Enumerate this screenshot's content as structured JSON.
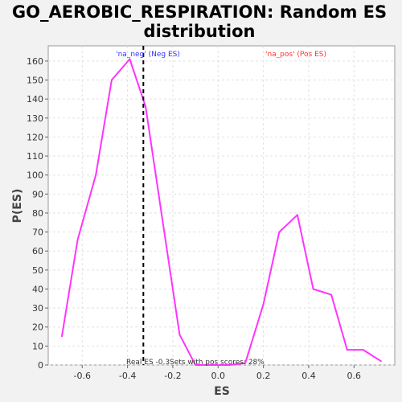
{
  "chart_data": {
    "type": "line",
    "title_line1": "GO_AEROBIC_RESPIRATION: Random ES",
    "title_line2": "distribution",
    "xlabel": "ES",
    "ylabel": "P(ES)",
    "xlim": [
      -0.75,
      0.78
    ],
    "ylim": [
      0,
      168
    ],
    "x_ticks": [
      "-0.6",
      "-0.4",
      "-0.2",
      "0.0",
      "0.2",
      "0.4",
      "0.6"
    ],
    "x_tick_values": [
      -0.6,
      -0.4,
      -0.2,
      0.0,
      0.2,
      0.4,
      0.6
    ],
    "y_ticks": [
      "0",
      "10",
      "20",
      "30",
      "40",
      "50",
      "60",
      "70",
      "80",
      "90",
      "100",
      "110",
      "120",
      "130",
      "140",
      "150",
      "160"
    ],
    "y_tick_values": [
      0,
      10,
      20,
      30,
      40,
      50,
      60,
      70,
      80,
      90,
      100,
      110,
      120,
      130,
      140,
      150,
      160
    ],
    "grid": true,
    "series": [
      {
        "color": "#ff33ff",
        "x": [
          -0.69,
          -0.62,
          -0.54,
          -0.47,
          -0.39,
          -0.32,
          -0.25,
          -0.17,
          -0.1,
          -0.02,
          0.05,
          0.12,
          0.2,
          0.27,
          0.35,
          0.42,
          0.5,
          0.57,
          0.64,
          0.72
        ],
        "y": [
          15,
          66,
          100,
          150,
          161,
          136,
          80,
          16,
          0,
          0,
          0,
          1,
          32,
          70,
          79,
          40,
          37,
          8,
          8,
          2
        ]
      }
    ],
    "real_es": -0.33,
    "annotations": {
      "neg_label": "'na_neg' (Neg ES)",
      "pos_label": "'na_pos' (Pos ES)",
      "real_es_label": "Real ES -0.3",
      "pos_scores_label": "Sets with pos scores: 28%",
      "neg_color": "#3333ff",
      "pos_color": "#ff3333"
    }
  }
}
